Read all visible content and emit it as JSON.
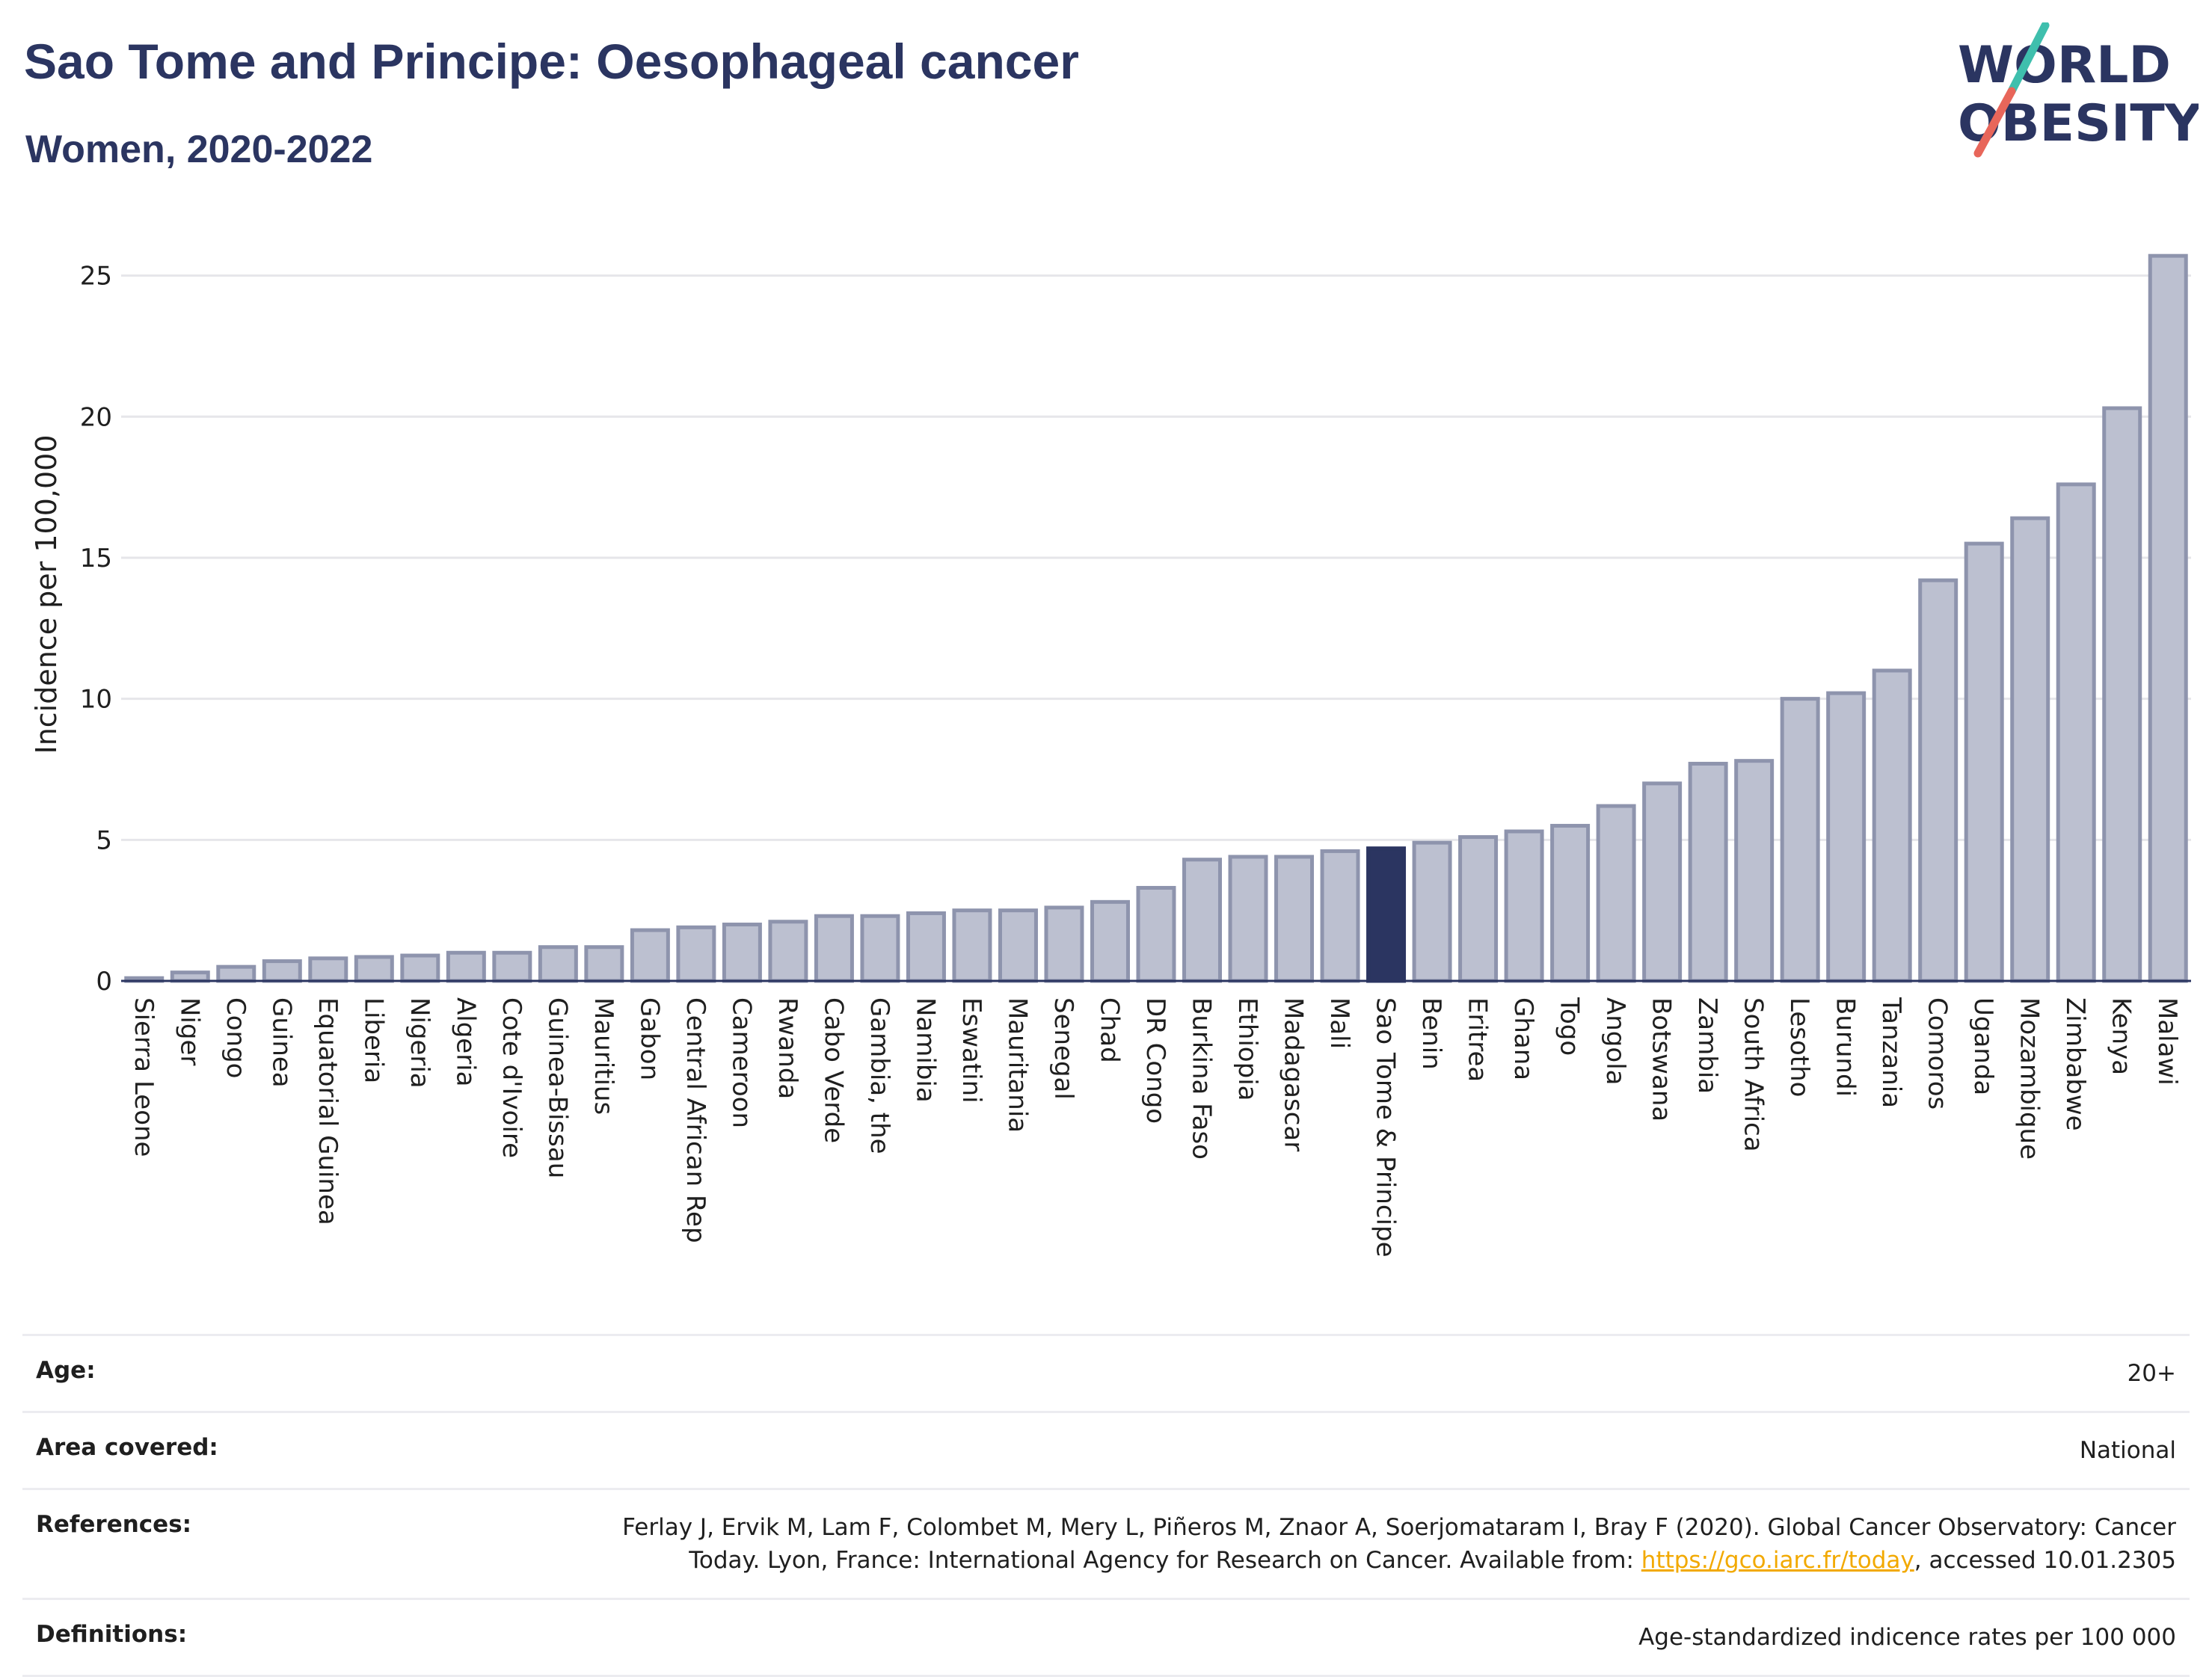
{
  "title": "Sao Tome and Principe: Oesophageal cancer",
  "subtitle": "Women, 2020-2022",
  "logo": {
    "line1": "WORLD",
    "line2": "OBESITY",
    "colors": {
      "text": "#2b3561",
      "slash_top": "#3fbfad",
      "slash_bottom": "#e8665a"
    }
  },
  "colors": {
    "bar": "#bcc0d0",
    "bar_border": "#8e94ad",
    "highlight": "#2b3561",
    "grid": "#e6e6ea",
    "axis": "#2b3561"
  },
  "chart_data": {
    "type": "bar",
    "ylabel": "Incidence per 100,000",
    "ylim": [
      0,
      26.5
    ],
    "yticks": [
      0,
      5,
      10,
      15,
      20,
      25
    ],
    "grid": true,
    "highlight": "Sao Tome & Principe",
    "categories": [
      "Sierra Leone",
      "Niger",
      "Congo",
      "Guinea",
      "Equatorial Guinea",
      "Liberia",
      "Nigeria",
      "Algeria",
      "Cote d'Ivoire",
      "Guinea-Bissau",
      "Mauritius",
      "Gabon",
      "Central African Rep",
      "Cameroon",
      "Rwanda",
      "Cabo Verde",
      "Gambia, the",
      "Namibia",
      "Eswatini",
      "Mauritania",
      "Senegal",
      "Chad",
      "DR Congo",
      "Burkina Faso",
      "Ethiopia",
      "Madagascar",
      "Mali",
      "Sao Tome & Principe",
      "Benin",
      "Eritrea",
      "Ghana",
      "Togo",
      "Angola",
      "Botswana",
      "Zambia",
      "South Africa",
      "Lesotho",
      "Burundi",
      "Tanzania",
      "Comoros",
      "Uganda",
      "Mozambique",
      "Zimbabwe",
      "Kenya",
      "Malawi"
    ],
    "values": [
      0.1,
      0.3,
      0.5,
      0.7,
      0.8,
      0.85,
      0.9,
      1.0,
      1.0,
      1.2,
      1.2,
      1.8,
      1.9,
      2.0,
      2.1,
      2.3,
      2.3,
      2.4,
      2.5,
      2.5,
      2.6,
      2.8,
      3.3,
      4.3,
      4.4,
      4.4,
      4.6,
      4.7,
      4.9,
      5.1,
      5.3,
      5.5,
      6.2,
      7.0,
      7.7,
      7.8,
      10.0,
      10.2,
      11.0,
      14.2,
      15.5,
      16.4,
      17.6,
      20.3,
      25.7
    ]
  },
  "info": [
    {
      "label": "Age:",
      "value": "20+"
    },
    {
      "label": "Area covered:",
      "value": "National"
    },
    {
      "label": "References:",
      "value_line1": "Ferlay J, Ervik M, Lam F, Colombet M, Mery L, Piñeros M, Znaor A, Soerjomataram I, Bray F (2020). Global Cancer Observatory: Cancer",
      "value_line2_pre": "Today. Lyon, France: International Agency for Research on Cancer. Available from: ",
      "link": "https://gco.iarc.fr/today",
      "value_line2_post": ", accessed 10.01.2305"
    },
    {
      "label": "Definitions:",
      "value": "Age-standardized indicence rates per 100 000"
    }
  ]
}
